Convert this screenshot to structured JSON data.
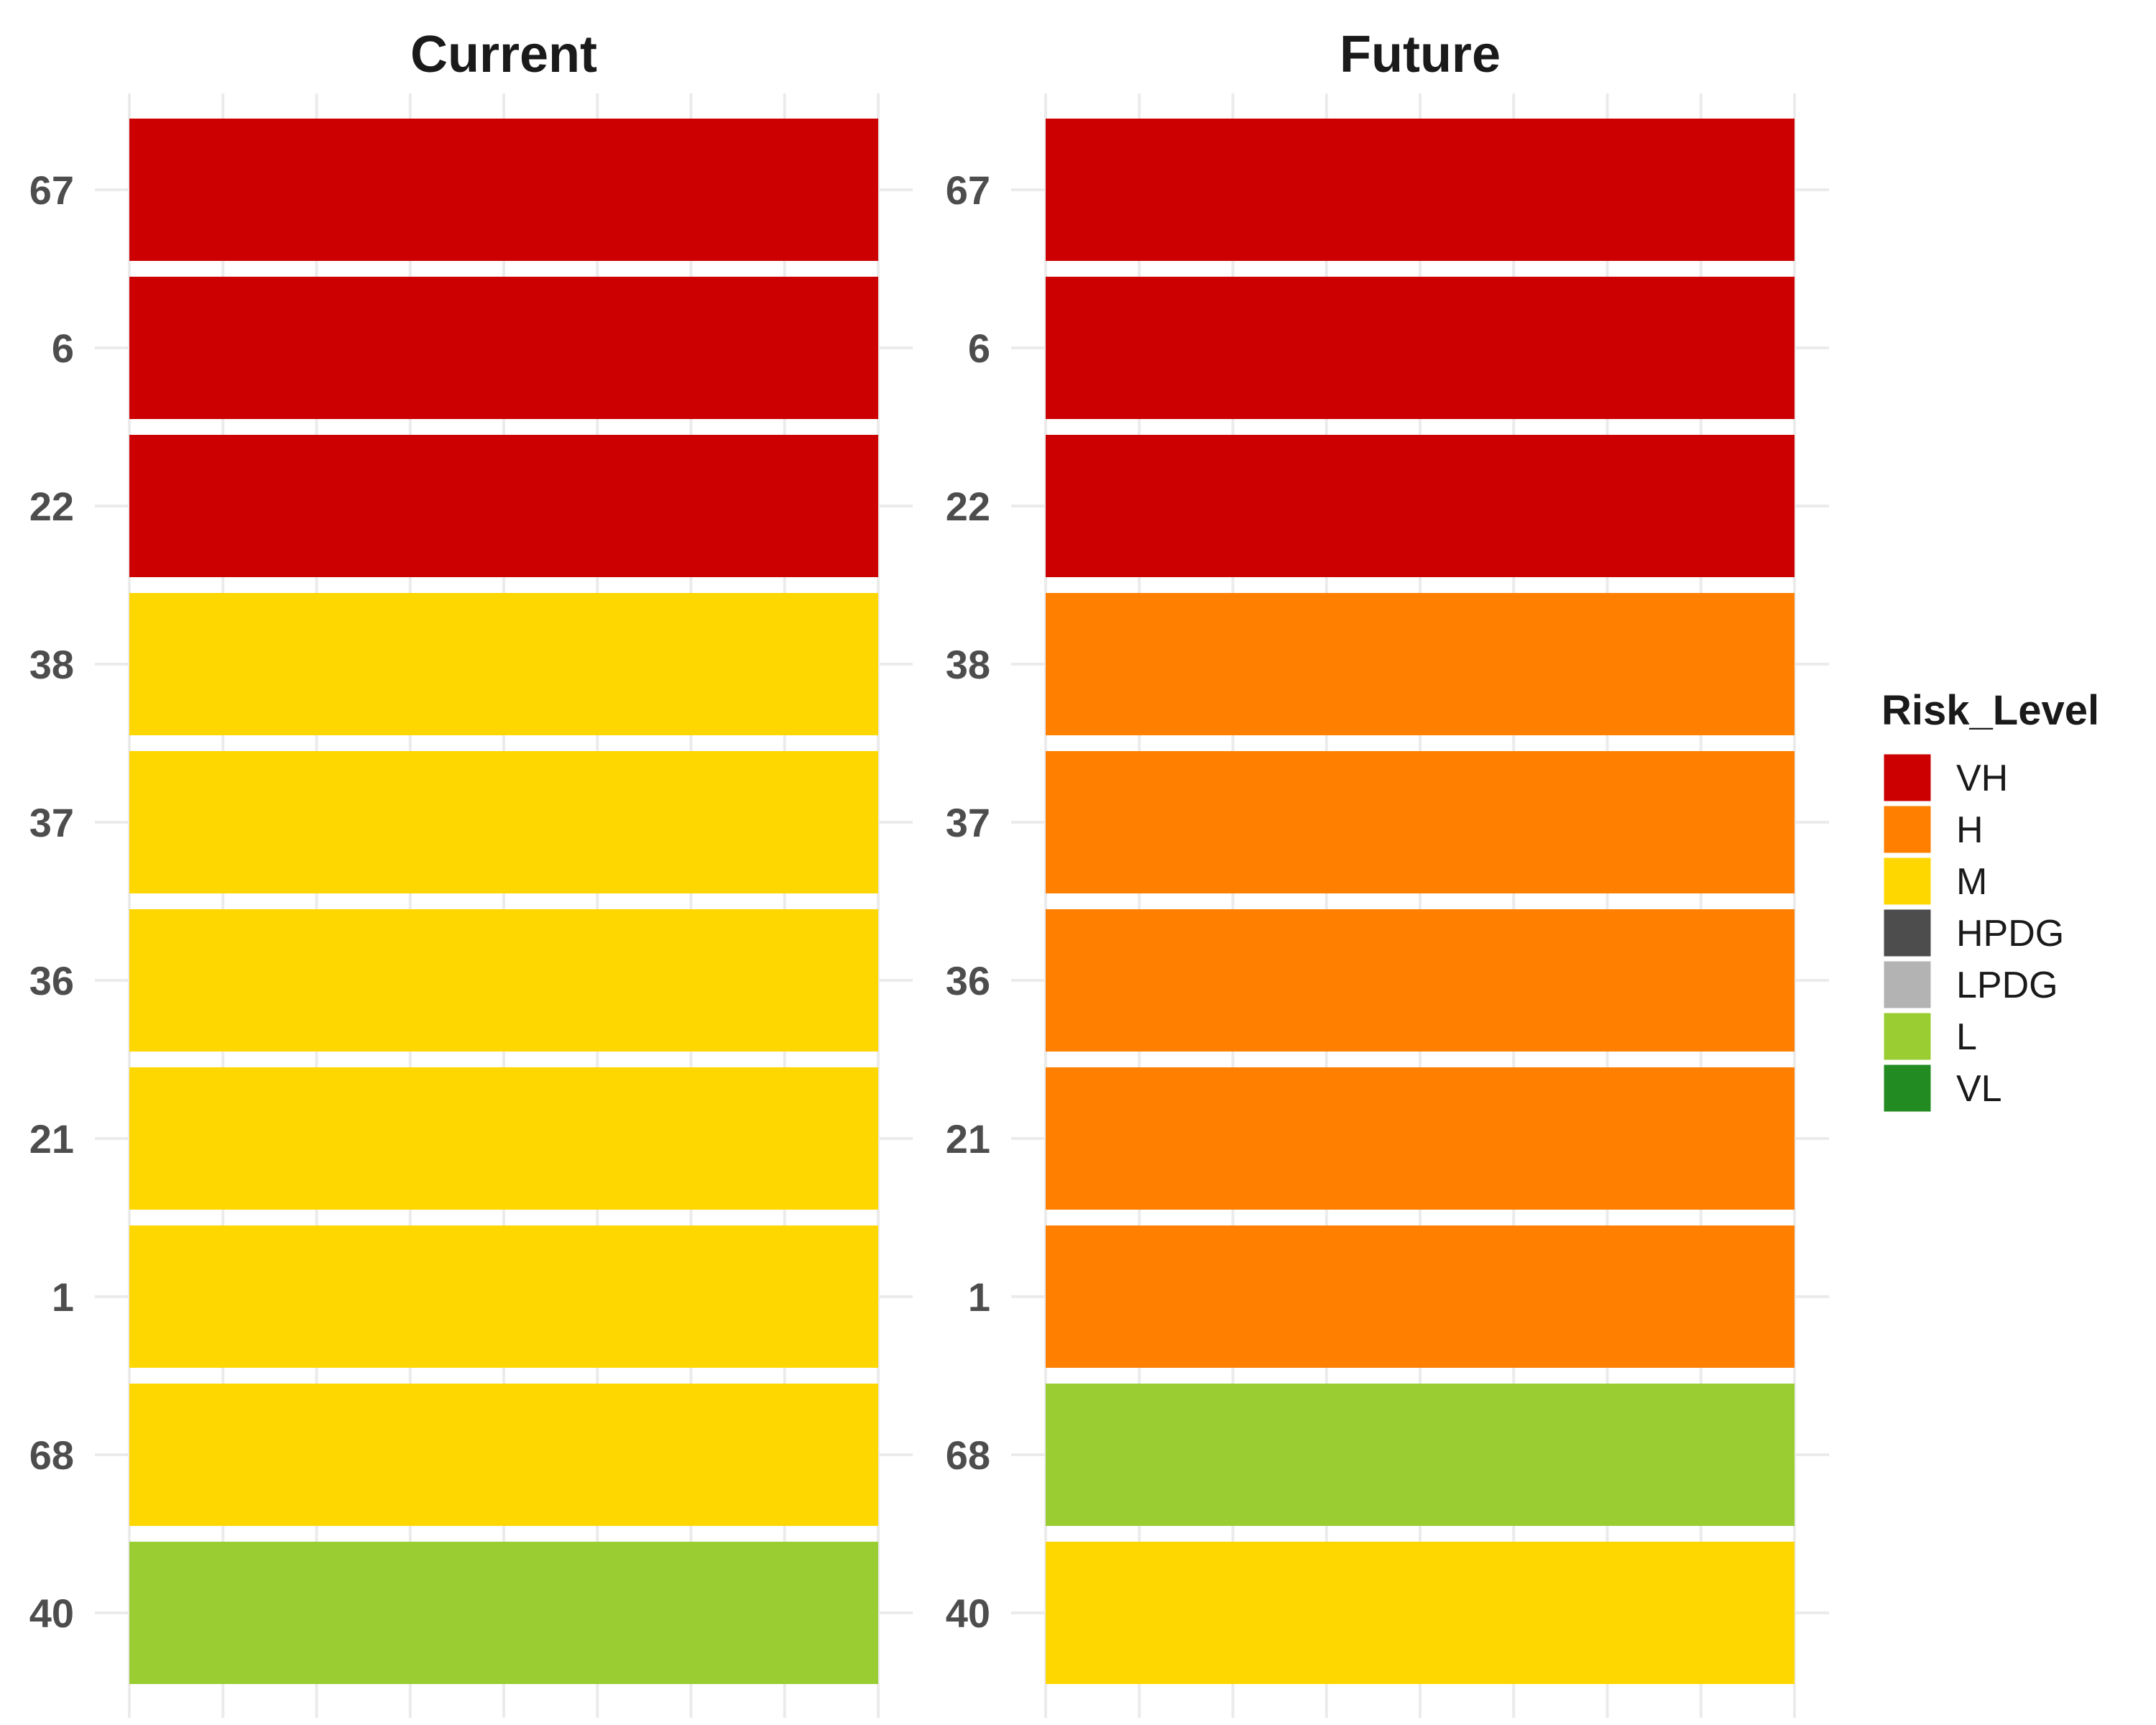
{
  "chart_data": {
    "type": "heatmap",
    "facets": [
      "Current",
      "Future"
    ],
    "categories": [
      "67",
      "6",
      "22",
      "38",
      "37",
      "36",
      "21",
      "1",
      "68",
      "40"
    ],
    "series": [
      {
        "facet": "Current",
        "values": [
          "VH",
          "VH",
          "VH",
          "M",
          "M",
          "M",
          "M",
          "M",
          "M",
          "L"
        ]
      },
      {
        "facet": "Future",
        "values": [
          "VH",
          "VH",
          "VH",
          "H",
          "H",
          "H",
          "H",
          "H",
          "L",
          "M"
        ]
      }
    ],
    "legend": {
      "title": "Risk_Level",
      "position": "right",
      "items": [
        {
          "label": "VH",
          "color": "#CC0000"
        },
        {
          "label": "H",
          "color": "#FF7F00"
        },
        {
          "label": "M",
          "color": "#FFD700"
        },
        {
          "label": "HPDG",
          "color": "#4D4D4D"
        },
        {
          "label": "LPDG",
          "color": "#B3B3B3"
        },
        {
          "label": "L",
          "color": "#9ACD32"
        },
        {
          "label": "VL",
          "color": "#228B22"
        }
      ]
    },
    "grid": true
  }
}
